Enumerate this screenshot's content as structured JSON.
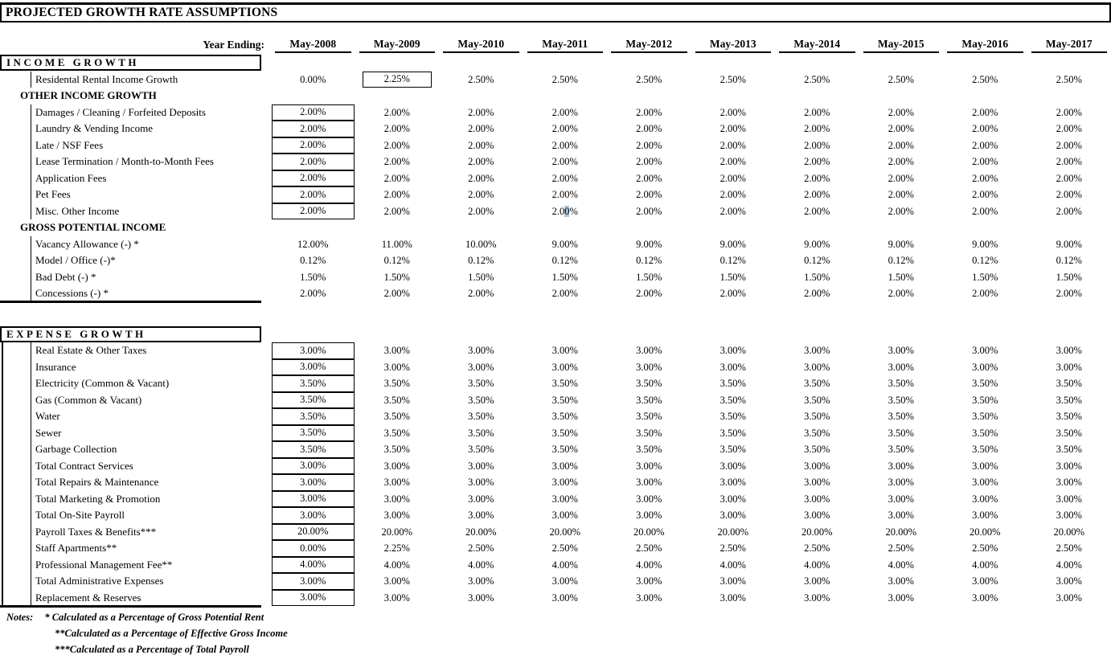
{
  "title": "PROJECTED GROWTH RATE ASSUMPTIONS",
  "header": {
    "year_ending_label": "Year Ending:",
    "years": [
      "May-2008",
      "May-2009",
      "May-2010",
      "May-2011",
      "May-2012",
      "May-2013",
      "May-2014",
      "May-2015",
      "May-2016",
      "May-2017"
    ]
  },
  "colors": {
    "selection_highlight": "#a8c7e4",
    "text": "#000000",
    "background": "#ffffff"
  },
  "table": {
    "rows": [
      {
        "kind": "boxhdr",
        "label": "INCOME GROWTH"
      },
      {
        "kind": "data",
        "label": "Residental Rental Income Growth",
        "values": [
          "0.00%",
          "2.25%",
          "2.50%",
          "2.50%",
          "2.50%",
          "2.50%",
          "2.50%",
          "2.50%",
          "2.50%",
          "2.50%"
        ],
        "box_cols": [
          1
        ],
        "box_style": "narrow"
      },
      {
        "kind": "subhdr",
        "label": "OTHER INCOME GROWTH"
      },
      {
        "kind": "data",
        "label": "Damages / Cleaning / Forfeited Deposits",
        "values": [
          "2.00%",
          "2.00%",
          "2.00%",
          "2.00%",
          "2.00%",
          "2.00%",
          "2.00%",
          "2.00%",
          "2.00%",
          "2.00%"
        ],
        "box_cols": [
          0
        ]
      },
      {
        "kind": "data",
        "label": "Laundry & Vending Income",
        "values": [
          "2.00%",
          "2.00%",
          "2.00%",
          "2.00%",
          "2.00%",
          "2.00%",
          "2.00%",
          "2.00%",
          "2.00%",
          "2.00%"
        ],
        "box_cols": [
          0
        ]
      },
      {
        "kind": "data",
        "label": "Late / NSF Fees",
        "values": [
          "2.00%",
          "2.00%",
          "2.00%",
          "2.00%",
          "2.00%",
          "2.00%",
          "2.00%",
          "2.00%",
          "2.00%",
          "2.00%"
        ],
        "box_cols": [
          0
        ]
      },
      {
        "kind": "data",
        "label": "Lease Termination / Month-to-Month Fees",
        "values": [
          "2.00%",
          "2.00%",
          "2.00%",
          "2.00%",
          "2.00%",
          "2.00%",
          "2.00%",
          "2.00%",
          "2.00%",
          "2.00%"
        ],
        "box_cols": [
          0
        ]
      },
      {
        "kind": "data",
        "label": "Application Fees",
        "values": [
          "2.00%",
          "2.00%",
          "2.00%",
          "2.00%",
          "2.00%",
          "2.00%",
          "2.00%",
          "2.00%",
          "2.00%",
          "2.00%"
        ],
        "box_cols": [
          0
        ]
      },
      {
        "kind": "data",
        "label": "Pet Fees",
        "values": [
          "2.00%",
          "2.00%",
          "2.00%",
          "2.00%",
          "2.00%",
          "2.00%",
          "2.00%",
          "2.00%",
          "2.00%",
          "2.00%"
        ],
        "box_cols": [
          0
        ]
      },
      {
        "kind": "data",
        "label": "Misc. Other Income",
        "values": [
          "2.00%",
          "2.00%",
          "2.00%",
          "2.00%",
          "2.00%",
          "2.00%",
          "2.00%",
          "2.00%",
          "2.00%",
          "2.00%"
        ],
        "box_cols": [
          0
        ],
        "highlight_col": 3,
        "highlight_char": 3
      },
      {
        "kind": "subhdr",
        "label": "GROSS POTENTIAL INCOME"
      },
      {
        "kind": "data",
        "label": "Vacancy Allowance (-) *",
        "values": [
          "12.00%",
          "11.00%",
          "10.00%",
          "9.00%",
          "9.00%",
          "9.00%",
          "9.00%",
          "9.00%",
          "9.00%",
          "9.00%"
        ]
      },
      {
        "kind": "data",
        "label": "Model / Office (-)*",
        "values": [
          "0.12%",
          "0.12%",
          "0.12%",
          "0.12%",
          "0.12%",
          "0.12%",
          "0.12%",
          "0.12%",
          "0.12%",
          "0.12%"
        ]
      },
      {
        "kind": "data",
        "label": "Bad Debt (-) *",
        "values": [
          "1.50%",
          "1.50%",
          "1.50%",
          "1.50%",
          "1.50%",
          "1.50%",
          "1.50%",
          "1.50%",
          "1.50%",
          "1.50%"
        ]
      },
      {
        "kind": "data",
        "label": "Concessions (-) *",
        "values": [
          "2.00%",
          "2.00%",
          "2.00%",
          "2.00%",
          "2.00%",
          "2.00%",
          "2.00%",
          "2.00%",
          "2.00%",
          "2.00%"
        ],
        "endline": true
      },
      {
        "kind": "gap"
      },
      {
        "kind": "boxhdr",
        "label": "EXPENSE GROWTH"
      },
      {
        "kind": "data",
        "label": "Real Estate & Other Taxes",
        "values": [
          "3.00%",
          "3.00%",
          "3.00%",
          "3.00%",
          "3.00%",
          "3.00%",
          "3.00%",
          "3.00%",
          "3.00%",
          "3.00%"
        ],
        "box_cols": [
          0
        ],
        "leftline": true
      },
      {
        "kind": "data",
        "label": "Insurance",
        "values": [
          "3.00%",
          "3.00%",
          "3.00%",
          "3.00%",
          "3.00%",
          "3.00%",
          "3.00%",
          "3.00%",
          "3.00%",
          "3.00%"
        ],
        "box_cols": [
          0
        ],
        "leftline": true
      },
      {
        "kind": "data",
        "label": "Electricity (Common & Vacant)",
        "values": [
          "3.50%",
          "3.50%",
          "3.50%",
          "3.50%",
          "3.50%",
          "3.50%",
          "3.50%",
          "3.50%",
          "3.50%",
          "3.50%"
        ],
        "box_cols": [
          0
        ],
        "leftline": true
      },
      {
        "kind": "data",
        "label": "Gas (Common & Vacant)",
        "values": [
          "3.50%",
          "3.50%",
          "3.50%",
          "3.50%",
          "3.50%",
          "3.50%",
          "3.50%",
          "3.50%",
          "3.50%",
          "3.50%"
        ],
        "box_cols": [
          0
        ],
        "leftline": true
      },
      {
        "kind": "data",
        "label": "Water",
        "values": [
          "3.50%",
          "3.50%",
          "3.50%",
          "3.50%",
          "3.50%",
          "3.50%",
          "3.50%",
          "3.50%",
          "3.50%",
          "3.50%"
        ],
        "box_cols": [
          0
        ],
        "leftline": true
      },
      {
        "kind": "data",
        "label": "Sewer",
        "values": [
          "3.50%",
          "3.50%",
          "3.50%",
          "3.50%",
          "3.50%",
          "3.50%",
          "3.50%",
          "3.50%",
          "3.50%",
          "3.50%"
        ],
        "box_cols": [
          0
        ],
        "leftline": true
      },
      {
        "kind": "data",
        "label": "Garbage Collection",
        "values": [
          "3.50%",
          "3.50%",
          "3.50%",
          "3.50%",
          "3.50%",
          "3.50%",
          "3.50%",
          "3.50%",
          "3.50%",
          "3.50%"
        ],
        "box_cols": [
          0
        ],
        "leftline": true
      },
      {
        "kind": "data",
        "label": "Total Contract Services",
        "values": [
          "3.00%",
          "3.00%",
          "3.00%",
          "3.00%",
          "3.00%",
          "3.00%",
          "3.00%",
          "3.00%",
          "3.00%",
          "3.00%"
        ],
        "box_cols": [
          0
        ],
        "leftline": true
      },
      {
        "kind": "data",
        "label": "Total Repairs & Maintenance",
        "values": [
          "3.00%",
          "3.00%",
          "3.00%",
          "3.00%",
          "3.00%",
          "3.00%",
          "3.00%",
          "3.00%",
          "3.00%",
          "3.00%"
        ],
        "box_cols": [
          0
        ],
        "leftline": true
      },
      {
        "kind": "data",
        "label": "Total Marketing & Promotion",
        "values": [
          "3.00%",
          "3.00%",
          "3.00%",
          "3.00%",
          "3.00%",
          "3.00%",
          "3.00%",
          "3.00%",
          "3.00%",
          "3.00%"
        ],
        "box_cols": [
          0
        ],
        "leftline": true
      },
      {
        "kind": "data",
        "label": "Total On-Site Payroll",
        "values": [
          "3.00%",
          "3.00%",
          "3.00%",
          "3.00%",
          "3.00%",
          "3.00%",
          "3.00%",
          "3.00%",
          "3.00%",
          "3.00%"
        ],
        "box_cols": [
          0
        ],
        "leftline": true
      },
      {
        "kind": "data",
        "label": "Payroll Taxes & Benefits***",
        "values": [
          "20.00%",
          "20.00%",
          "20.00%",
          "20.00%",
          "20.00%",
          "20.00%",
          "20.00%",
          "20.00%",
          "20.00%",
          "20.00%"
        ],
        "box_cols": [
          0
        ],
        "leftline": true
      },
      {
        "kind": "data",
        "label": "Staff Apartments**",
        "values": [
          "0.00%",
          "2.25%",
          "2.50%",
          "2.50%",
          "2.50%",
          "2.50%",
          "2.50%",
          "2.50%",
          "2.50%",
          "2.50%"
        ],
        "box_cols": [
          0
        ],
        "leftline": true
      },
      {
        "kind": "data",
        "label": "Professional Management Fee**",
        "values": [
          "4.00%",
          "4.00%",
          "4.00%",
          "4.00%",
          "4.00%",
          "4.00%",
          "4.00%",
          "4.00%",
          "4.00%",
          "4.00%"
        ],
        "box_cols": [
          0
        ],
        "leftline": true
      },
      {
        "kind": "data",
        "label": "Total Administrative Expenses",
        "values": [
          "3.00%",
          "3.00%",
          "3.00%",
          "3.00%",
          "3.00%",
          "3.00%",
          "3.00%",
          "3.00%",
          "3.00%",
          "3.00%"
        ],
        "box_cols": [
          0
        ],
        "leftline": true
      },
      {
        "kind": "data",
        "label": "Replacement & Reserves",
        "values": [
          "3.00%",
          "3.00%",
          "3.00%",
          "3.00%",
          "3.00%",
          "3.00%",
          "3.00%",
          "3.00%",
          "3.00%",
          "3.00%"
        ],
        "box_cols": [
          0
        ],
        "leftline": true,
        "endline": true
      }
    ]
  },
  "notes": {
    "label": "Notes:",
    "items": [
      "* Calculated as a Percentage of Gross Potential Rent",
      "**Calculated as a Percentage of Effective Gross Income",
      "***Calculated as a Percentage of Total Payroll"
    ]
  }
}
